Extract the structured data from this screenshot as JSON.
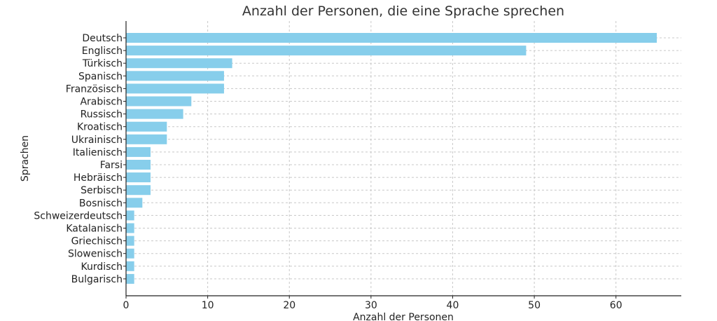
{
  "chart_data": {
    "type": "bar",
    "orientation": "horizontal",
    "title": "Anzahl der Personen, die eine Sprache sprechen",
    "xlabel": "Anzahl der Personen",
    "ylabel": "Sprachen",
    "xlim": [
      0,
      68
    ],
    "xticks": [
      0,
      10,
      20,
      30,
      40,
      50,
      60
    ],
    "grid": true,
    "bar_color": "#87CEEB",
    "categories": [
      "Deutsch",
      "Englisch",
      "Türkisch",
      "Spanisch",
      "Französisch",
      "Arabisch",
      "Russisch",
      "Kroatisch",
      "Ukrainisch",
      "Italienisch",
      "Farsi",
      "Hebräisch",
      "Serbisch",
      "Bosnisch",
      "Schweizerdeutsch",
      "Katalanisch",
      "Griechisch",
      "Slowenisch",
      "Kurdisch",
      "Bulgarisch"
    ],
    "values": [
      65,
      49,
      13,
      12,
      12,
      8,
      7,
      5,
      5,
      3,
      3,
      3,
      3,
      2,
      1,
      1,
      1,
      1,
      1,
      1
    ]
  }
}
